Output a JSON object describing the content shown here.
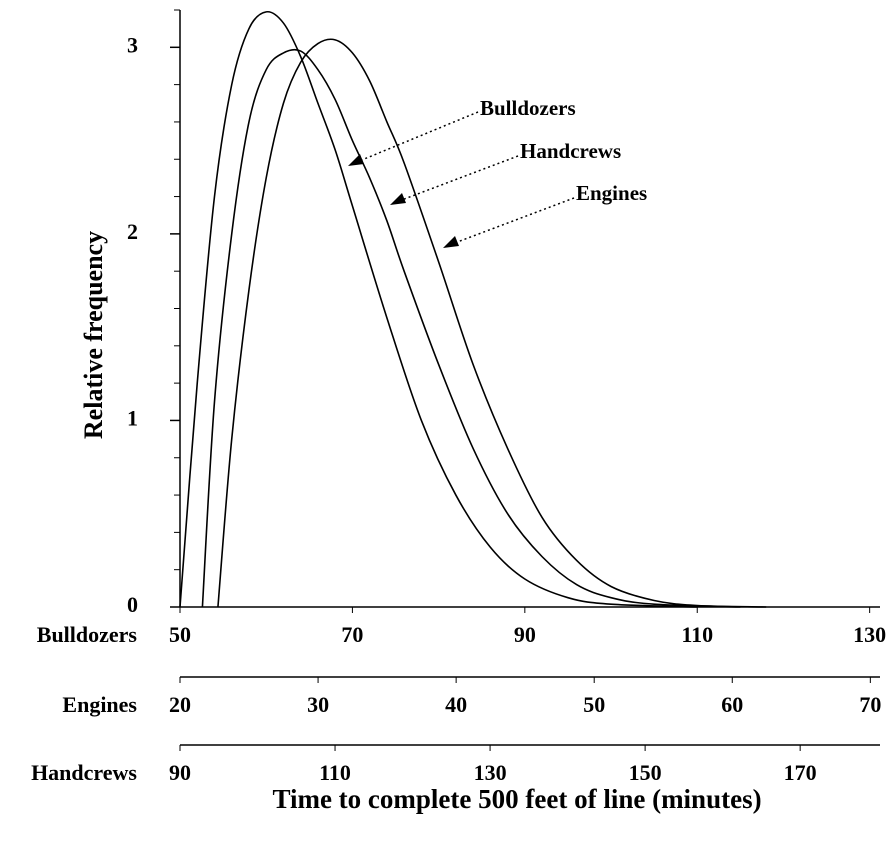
{
  "chart_data": {
    "type": "line",
    "ylabel": "Relative frequency",
    "xlabel": "Time to complete 500 feet of line (minutes)",
    "ylim": [
      0,
      3.2
    ],
    "yticks": [
      0,
      1,
      2,
      3
    ],
    "yticks_minor": [
      0.2,
      0.4,
      0.6,
      0.8,
      1.2,
      1.4,
      1.6,
      1.8,
      2.2,
      2.4,
      2.6,
      2.8,
      3.2
    ],
    "x_axes": [
      {
        "name": "Bulldozers",
        "xlim": [
          50,
          131.2
        ],
        "xticks": [
          50,
          70,
          90,
          110,
          130
        ]
      },
      {
        "name": "Engines",
        "xlim": [
          20,
          70.7
        ],
        "xticks": [
          20,
          30,
          40,
          50,
          60,
          70
        ]
      },
      {
        "name": "Handcrews",
        "xlim": [
          90,
          180.3
        ],
        "xticks": [
          90,
          110,
          130,
          150,
          170
        ]
      }
    ],
    "series": [
      {
        "name": "Bulldozers",
        "color": "#000000",
        "x": [
          50,
          52,
          54,
          56,
          58,
          60,
          62,
          64,
          66,
          68,
          70,
          74,
          78,
          82,
          86,
          90,
          95,
          100,
          110
        ],
        "values": [
          0,
          1.2,
          2.2,
          2.8,
          3.1,
          3.19,
          3.13,
          2.95,
          2.7,
          2.45,
          2.15,
          1.55,
          1.0,
          0.6,
          0.32,
          0.15,
          0.05,
          0.015,
          0
        ]
      },
      {
        "name": "Handcrews",
        "color": "#000000",
        "x": [
          52.6,
          54,
          56,
          58,
          60,
          62,
          64,
          66,
          68,
          70,
          72,
          74,
          76,
          80,
          84,
          88,
          92,
          96,
          100,
          105,
          115
        ],
        "values": [
          0,
          1.1,
          2.0,
          2.6,
          2.88,
          2.97,
          2.98,
          2.88,
          2.72,
          2.5,
          2.3,
          2.07,
          1.8,
          1.3,
          0.85,
          0.5,
          0.27,
          0.12,
          0.05,
          0.015,
          0
        ]
      },
      {
        "name": "Engines",
        "color": "#000000",
        "x": [
          54.4,
          56,
          58,
          60,
          62,
          64,
          66,
          68,
          70,
          72,
          74,
          76,
          80,
          84,
          88,
          92,
          96,
          100,
          105,
          110,
          118
        ],
        "values": [
          0,
          0.9,
          1.7,
          2.3,
          2.7,
          2.92,
          3.02,
          3.04,
          2.97,
          2.82,
          2.6,
          2.38,
          1.85,
          1.3,
          0.85,
          0.48,
          0.25,
          0.11,
          0.035,
          0.008,
          0
        ]
      }
    ],
    "annotations": [
      "Bulldozers",
      "Handcrews",
      "Engines"
    ]
  }
}
